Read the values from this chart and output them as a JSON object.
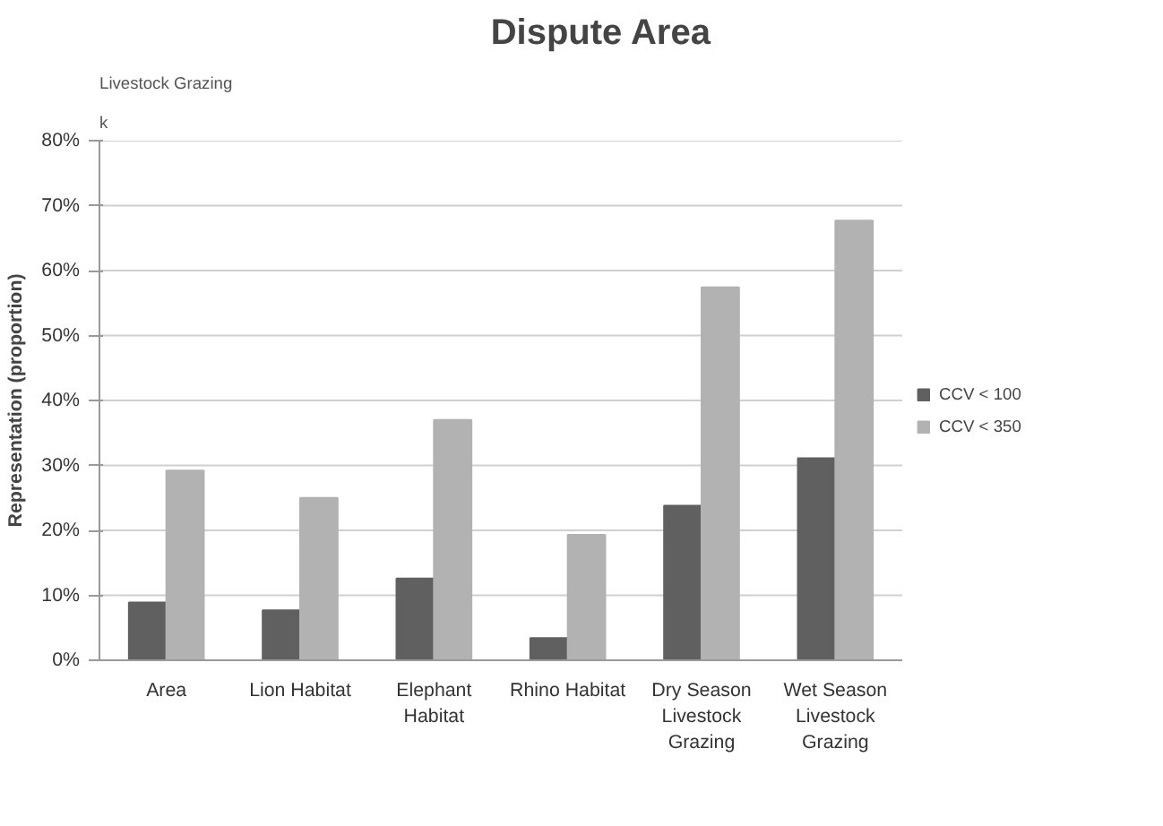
{
  "chart_data": {
    "type": "bar",
    "title": "Dispute Area",
    "ylabel": "Representation (proportion)",
    "categories": [
      "Area",
      "Lion Habitat",
      "Elephant Habitat",
      "Rhino Habitat",
      "Dry Season Livestock Grazing",
      "Wet Season Livestock Grazing"
    ],
    "series": [
      {
        "name": "CCV < 100",
        "color": "#606060",
        "values": [
          8.9,
          7.7,
          12.6,
          3.4,
          23.8,
          31.1
        ]
      },
      {
        "name": "CCV < 350",
        "color": "#b2b2b2",
        "values": [
          29.2,
          25.0,
          37.0,
          19.3,
          57.4,
          67.7
        ]
      }
    ],
    "ylim": [
      0,
      80
    ],
    "yticks": [
      {
        "value": 0,
        "label": "0%"
      },
      {
        "value": 10,
        "label": "10%"
      },
      {
        "value": 20,
        "label": "20%"
      },
      {
        "value": 30,
        "label": "30%"
      },
      {
        "value": 40,
        "label": "40%"
      },
      {
        "value": 50,
        "label": "50%"
      },
      {
        "value": 60,
        "label": "60%"
      },
      {
        "value": 70,
        "label": "70%"
      },
      {
        "value": 80,
        "label": "80%"
      }
    ],
    "grid": "y",
    "legend": "right",
    "annotations": [
      "k",
      "Livestock Grazing"
    ]
  }
}
